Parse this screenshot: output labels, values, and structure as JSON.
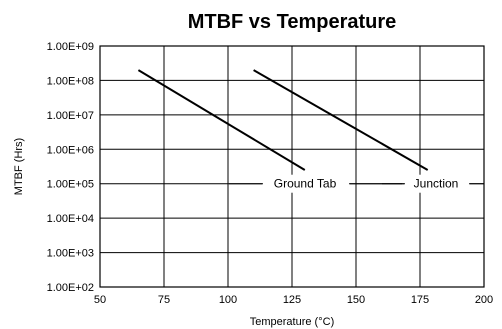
{
  "chart_data": {
    "type": "line",
    "title": "MTBF vs Temperature",
    "xlabel": "Temperature (°C)",
    "ylabel": "MTBF (Hrs)",
    "xlim": [
      50,
      200
    ],
    "ylim": [
      100,
      1000000000
    ],
    "y_scale": "log",
    "grid": true,
    "x_ticks": [
      50,
      75,
      100,
      125,
      150,
      175,
      200
    ],
    "x_tick_labels": [
      "50",
      "75",
      "100",
      "125",
      "150",
      "175",
      "200"
    ],
    "y_ticks": [
      100,
      1000,
      10000,
      100000,
      1000000,
      10000000,
      100000000,
      1000000000
    ],
    "y_tick_labels": [
      "1.00E+02",
      "1.00E+03",
      "1.00E+04",
      "1.00E+05",
      "1.00E+06",
      "1.00E+07",
      "1.00E+08",
      "1.00E+09"
    ],
    "series": [
      {
        "name": "Ground Tab",
        "x": [
          65,
          130
        ],
        "y": [
          200000000,
          250000
        ]
      },
      {
        "name": "Junction",
        "x": [
          110,
          178
        ],
        "y": [
          200000000,
          250000
        ]
      }
    ]
  }
}
